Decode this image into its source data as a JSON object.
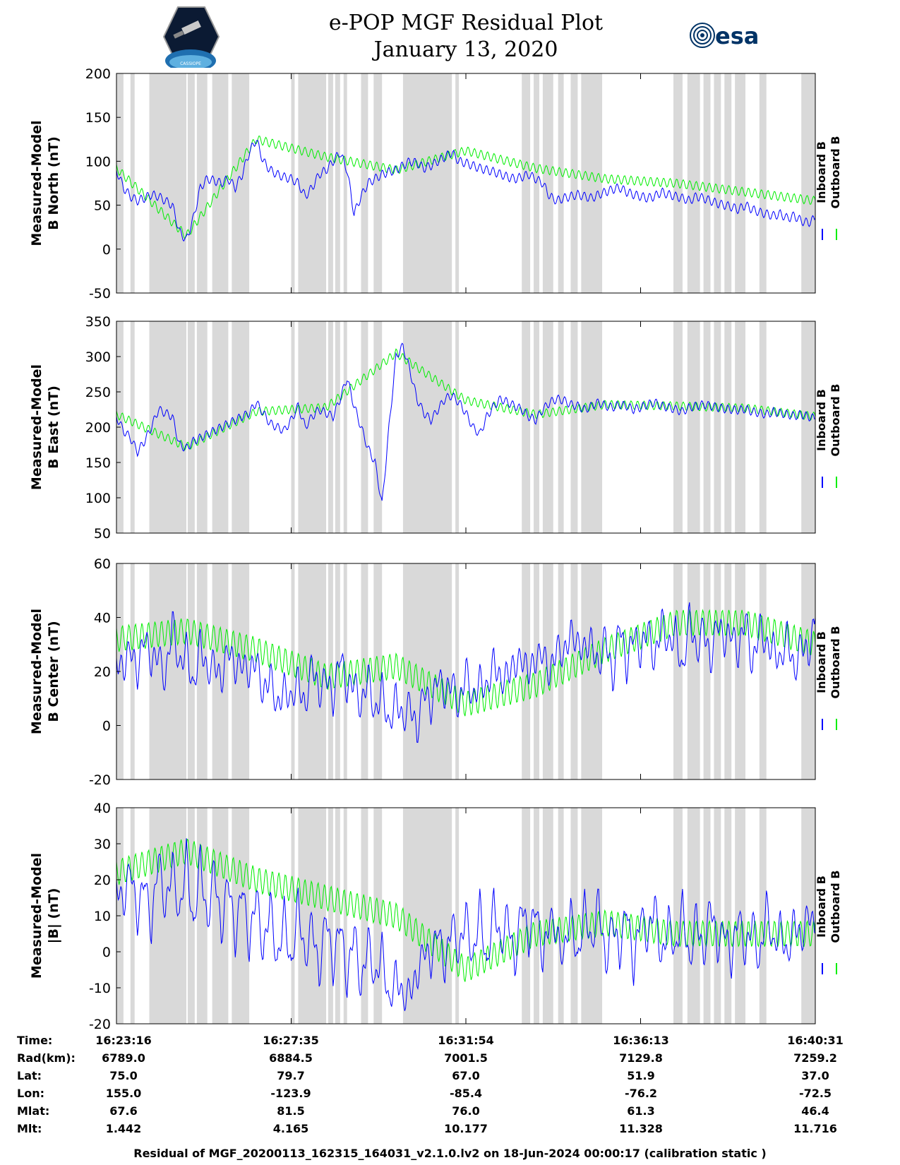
{
  "title": {
    "line1": "e-POP MGF Residual Plot",
    "line2": "January 13, 2020"
  },
  "logos": {
    "mission_logo": "satellite-mission-badge",
    "mission_text": "CASSIOPE",
    "agency_logo": "esa",
    "agency_text": "esa"
  },
  "colors": {
    "inboard": "#0000ff",
    "outboard": "#00ee00",
    "shade": "#d9d9d9"
  },
  "chart_data": [
    {
      "type": "line",
      "ylabel_line1": "Measured-Model",
      "ylabel_line2": "B North (nT)",
      "ylim": [
        -50,
        200
      ],
      "yticks": [
        -50,
        0,
        50,
        100,
        150,
        200
      ],
      "legend": [
        "Inboard B",
        "Outboard B"
      ],
      "series": [
        {
          "name": "Inboard B",
          "x": [
            0,
            1,
            2,
            3,
            4,
            5,
            6,
            7,
            8,
            9,
            10,
            11,
            12,
            13,
            14,
            15,
            16,
            17,
            18,
            19,
            20,
            21,
            22,
            23,
            24,
            25,
            26,
            27,
            28,
            29,
            30,
            31,
            32,
            33,
            34,
            35,
            36,
            37,
            38,
            39,
            40,
            41,
            42,
            43,
            44,
            45,
            46,
            47,
            48,
            49,
            50,
            51,
            52,
            53,
            54,
            55,
            56,
            57,
            58,
            59,
            60,
            61,
            62,
            63,
            64,
            65,
            66,
            67,
            68,
            69,
            70,
            71,
            72,
            73,
            74,
            75,
            76,
            77,
            78,
            79,
            80,
            81,
            82,
            83,
            84,
            85,
            86,
            87,
            88,
            89,
            90,
            91,
            92,
            93,
            94,
            95,
            96,
            97,
            98,
            99,
            100
          ],
          "values": [
            90,
            70,
            60,
            55,
            58,
            62,
            60,
            55,
            50,
            20,
            10,
            35,
            70,
            80,
            78,
            75,
            80,
            70,
            85,
            110,
            125,
            100,
            90,
            85,
            82,
            80,
            75,
            60,
            70,
            85,
            90,
            100,
            110,
            90,
            40,
            60,
            75,
            80,
            85,
            88,
            90,
            95,
            100,
            98,
            92,
            95,
            100,
            105,
            110,
            100,
            98,
            95,
            92,
            90,
            88,
            85,
            82,
            80,
            82,
            85,
            80,
            75,
            60,
            55,
            58,
            60,
            62,
            60,
            58,
            62,
            65,
            68,
            70,
            65,
            62,
            60,
            58,
            60,
            65,
            62,
            60,
            58,
            55,
            60,
            58,
            55,
            52,
            50,
            48,
            45,
            50,
            45,
            42,
            40,
            38,
            40,
            35,
            38,
            32,
            30,
            35
          ]
        },
        {
          "name": "Outboard B",
          "x": [
            0,
            10,
            20,
            30,
            40,
            50,
            60,
            70,
            80,
            90,
            100
          ],
          "values": [
            92,
            15,
            125,
            105,
            90,
            112,
            92,
            80,
            75,
            65,
            55
          ]
        }
      ]
    },
    {
      "type": "line",
      "ylabel_line1": "Measured-Model",
      "ylabel_line2": "B East (nT)",
      "ylim": [
        50,
        350
      ],
      "yticks": [
        50,
        100,
        150,
        200,
        250,
        300,
        350
      ],
      "legend": [
        "Inboard B",
        "Outboard B"
      ],
      "series": [
        {
          "name": "Inboard B",
          "x": [
            0,
            1,
            2,
            3,
            4,
            5,
            6,
            7,
            8,
            9,
            10,
            11,
            12,
            13,
            14,
            15,
            16,
            17,
            18,
            19,
            20,
            21,
            22,
            23,
            24,
            25,
            26,
            27,
            28,
            29,
            30,
            31,
            32,
            33,
            34,
            35,
            36,
            37,
            38,
            39,
            40,
            41,
            42,
            43,
            44,
            45,
            46,
            47,
            48,
            49,
            50,
            51,
            52,
            53,
            54,
            55,
            56,
            57,
            58,
            59,
            60,
            61,
            62,
            63,
            64,
            65,
            66,
            67,
            68,
            69,
            70,
            71,
            72,
            73,
            74,
            75,
            76,
            77,
            78,
            79,
            80,
            81,
            82,
            83,
            84,
            85,
            86,
            87,
            88,
            89,
            90,
            91,
            92,
            93,
            94,
            95,
            96,
            97,
            98,
            99,
            100
          ],
          "values": [
            215,
            195,
            185,
            165,
            180,
            200,
            225,
            220,
            215,
            175,
            170,
            180,
            185,
            190,
            195,
            200,
            205,
            210,
            215,
            220,
            235,
            220,
            205,
            200,
            195,
            210,
            230,
            200,
            215,
            225,
            220,
            215,
            240,
            270,
            230,
            200,
            170,
            150,
            90,
            200,
            300,
            315,
            280,
            240,
            220,
            210,
            225,
            240,
            245,
            235,
            220,
            200,
            190,
            215,
            230,
            240,
            235,
            230,
            225,
            215,
            210,
            225,
            235,
            240,
            238,
            232,
            230,
            225,
            230,
            235,
            230,
            228,
            232,
            230,
            225,
            228,
            232,
            235,
            230,
            228,
            225,
            222,
            228,
            230,
            232,
            230,
            228,
            226,
            225,
            224,
            226,
            222,
            220,
            218,
            222,
            220,
            218,
            216,
            218,
            215,
            212
          ]
        },
        {
          "name": "Outboard B",
          "x": [
            0,
            10,
            20,
            30,
            40,
            50,
            60,
            70,
            80,
            90,
            100
          ],
          "values": [
            218,
            172,
            222,
            228,
            305,
            238,
            218,
            232,
            230,
            227,
            215
          ]
        }
      ]
    },
    {
      "type": "line",
      "ylabel_line1": "Measured-Model",
      "ylabel_line2": "B Center (nT)",
      "ylim": [
        -20,
        60
      ],
      "yticks": [
        -20,
        0,
        20,
        40,
        60
      ],
      "legend": [
        "Inboard B",
        "Outboard B"
      ],
      "series": [
        {
          "name": "Inboard B",
          "x": [
            0,
            1,
            2,
            3,
            4,
            5,
            6,
            7,
            8,
            9,
            10,
            11,
            12,
            13,
            14,
            15,
            16,
            17,
            18,
            19,
            20,
            21,
            22,
            23,
            24,
            25,
            26,
            27,
            28,
            29,
            30,
            31,
            32,
            33,
            34,
            35,
            36,
            37,
            38,
            39,
            40,
            41,
            42,
            43,
            44,
            45,
            46,
            47,
            48,
            49,
            50,
            51,
            52,
            53,
            54,
            55,
            56,
            57,
            58,
            59,
            60,
            61,
            62,
            63,
            64,
            65,
            66,
            67,
            68,
            69,
            70,
            71,
            72,
            73,
            74,
            75,
            76,
            77,
            78,
            79,
            80,
            81,
            82,
            83,
            84,
            85,
            86,
            87,
            88,
            89,
            90,
            91,
            92,
            93,
            94,
            95,
            96,
            97,
            98,
            99,
            100
          ],
          "values": [
            25,
            20,
            30,
            18,
            35,
            22,
            28,
            15,
            40,
            20,
            30,
            12,
            32,
            18,
            25,
            15,
            30,
            20,
            24,
            18,
            26,
            10,
            20,
            5,
            15,
            8,
            18,
            5,
            25,
            10,
            20,
            8,
            28,
            12,
            18,
            5,
            20,
            2,
            15,
            -2,
            12,
            0,
            10,
            -4,
            15,
            5,
            20,
            10,
            18,
            5,
            22,
            8,
            18,
            12,
            25,
            15,
            20,
            22,
            25,
            20,
            24,
            28,
            18,
            30,
            25,
            35,
            30,
            28,
            32,
            20,
            35,
            15,
            40,
            20,
            36,
            25,
            38,
            22,
            40,
            28,
            36,
            18,
            42,
            25,
            38,
            22,
            40,
            30,
            36,
            25,
            42,
            20,
            38,
            28,
            30,
            22,
            35,
            18,
            32,
            25,
            40
          ]
        },
        {
          "name": "Outboard B",
          "x": [
            0,
            10,
            20,
            30,
            40,
            50,
            60,
            70,
            80,
            90,
            100
          ],
          "values": [
            32,
            35,
            28,
            18,
            22,
            8,
            15,
            28,
            38,
            38,
            30
          ]
        }
      ]
    },
    {
      "type": "line",
      "ylabel_line1": "Measured-Model",
      "ylabel_line2": "|B| (nT)",
      "ylim": [
        -20,
        40
      ],
      "yticks": [
        -20,
        -10,
        0,
        10,
        20,
        30,
        40
      ],
      "legend": [
        "Inboard B",
        "Outboard B"
      ],
      "series": [
        {
          "name": "Inboard B",
          "x": [
            0,
            1,
            2,
            3,
            4,
            5,
            6,
            7,
            8,
            9,
            10,
            11,
            12,
            13,
            14,
            15,
            16,
            17,
            18,
            19,
            20,
            21,
            22,
            23,
            24,
            25,
            26,
            27,
            28,
            29,
            30,
            31,
            32,
            33,
            34,
            35,
            36,
            37,
            38,
            39,
            40,
            41,
            42,
            43,
            44,
            45,
            46,
            47,
            48,
            49,
            50,
            51,
            52,
            53,
            54,
            55,
            56,
            57,
            58,
            59,
            60,
            61,
            62,
            63,
            64,
            65,
            66,
            67,
            68,
            69,
            70,
            71,
            72,
            73,
            74,
            75,
            76,
            77,
            78,
            79,
            80,
            81,
            82,
            83,
            84,
            85,
            86,
            87,
            88,
            89,
            90,
            91,
            92,
            93,
            94,
            95,
            96,
            97,
            98,
            99,
            100
          ],
          "values": [
            20,
            12,
            25,
            8,
            22,
            5,
            28,
            10,
            26,
            8,
            28,
            5,
            27,
            6,
            25,
            4,
            22,
            2,
            20,
            0,
            18,
            -2,
            15,
            -5,
            12,
            -6,
            15,
            -4,
            10,
            -8,
            12,
            -6,
            10,
            -10,
            8,
            -12,
            5,
            -10,
            2,
            -16,
            -5,
            -14,
            -10,
            -8,
            2,
            -4,
            8,
            -6,
            10,
            -2,
            12,
            -4,
            14,
            -6,
            15,
            0,
            12,
            -5,
            15,
            2,
            14,
            -3,
            10,
            5,
            -2,
            12,
            -4,
            14,
            0,
            16,
            -5,
            10,
            -2,
            14,
            -6,
            12,
            2,
            15,
            -4,
            10,
            -2,
            14,
            -5,
            12,
            -3,
            15,
            0,
            8,
            -4,
            12,
            -2,
            10,
            -5,
            14,
            0,
            8,
            -3,
            10,
            2,
            12,
            5
          ]
        },
        {
          "name": "Outboard B",
          "x": [
            0,
            10,
            20,
            30,
            40,
            50,
            60,
            70,
            80,
            90,
            100
          ],
          "values": [
            22,
            28,
            20,
            15,
            10,
            -5,
            5,
            8,
            5,
            5,
            5
          ]
        }
      ]
    }
  ],
  "shading": {
    "description_units": "fraction of time axis",
    "bands": [
      [
        0,
        0.01
      ],
      [
        0.02,
        0.026
      ],
      [
        0.047,
        0.1
      ],
      [
        0.102,
        0.112
      ],
      [
        0.115,
        0.13
      ],
      [
        0.137,
        0.16
      ],
      [
        0.165,
        0.19
      ],
      [
        0.25,
        0.255
      ],
      [
        0.26,
        0.3
      ],
      [
        0.303,
        0.31
      ],
      [
        0.313,
        0.32
      ],
      [
        0.325,
        0.33
      ],
      [
        0.35,
        0.36
      ],
      [
        0.368,
        0.38
      ],
      [
        0.41,
        0.48
      ],
      [
        0.485,
        0.49
      ],
      [
        0.58,
        0.592
      ],
      [
        0.597,
        0.605
      ],
      [
        0.61,
        0.625
      ],
      [
        0.632,
        0.64
      ],
      [
        0.65,
        0.66
      ],
      [
        0.665,
        0.695
      ],
      [
        0.797,
        0.81
      ],
      [
        0.817,
        0.835
      ],
      [
        0.84,
        0.85
      ],
      [
        0.855,
        0.865
      ],
      [
        0.87,
        0.88
      ],
      [
        0.885,
        0.9
      ],
      [
        0.92,
        0.93
      ],
      [
        0.98,
        1.0
      ]
    ]
  },
  "footer": {
    "row_labels": [
      "Time:",
      "Rad(km):",
      "Lat:",
      "Lon:",
      "Mlat:",
      "Mlt:"
    ],
    "columns": [
      [
        "16:23:16",
        "6789.0",
        "75.0",
        "155.0",
        "67.6",
        "1.442"
      ],
      [
        "16:27:35",
        "6884.5",
        "79.7",
        "-123.9",
        "81.5",
        "4.165"
      ],
      [
        "16:31:54",
        "7001.5",
        "67.0",
        "-85.4",
        "76.0",
        "10.177"
      ],
      [
        "16:36:13",
        "7129.8",
        "51.9",
        "-76.2",
        "61.3",
        "11.328"
      ],
      [
        "16:40:31",
        "7259.2",
        "37.0",
        "-72.5",
        "46.4",
        "11.716"
      ]
    ],
    "caption": "Residual of MGF_20200113_162315_164031_v2.1.0.lv2 on 18-Jun-2024 00:00:17 (calibration static )"
  }
}
